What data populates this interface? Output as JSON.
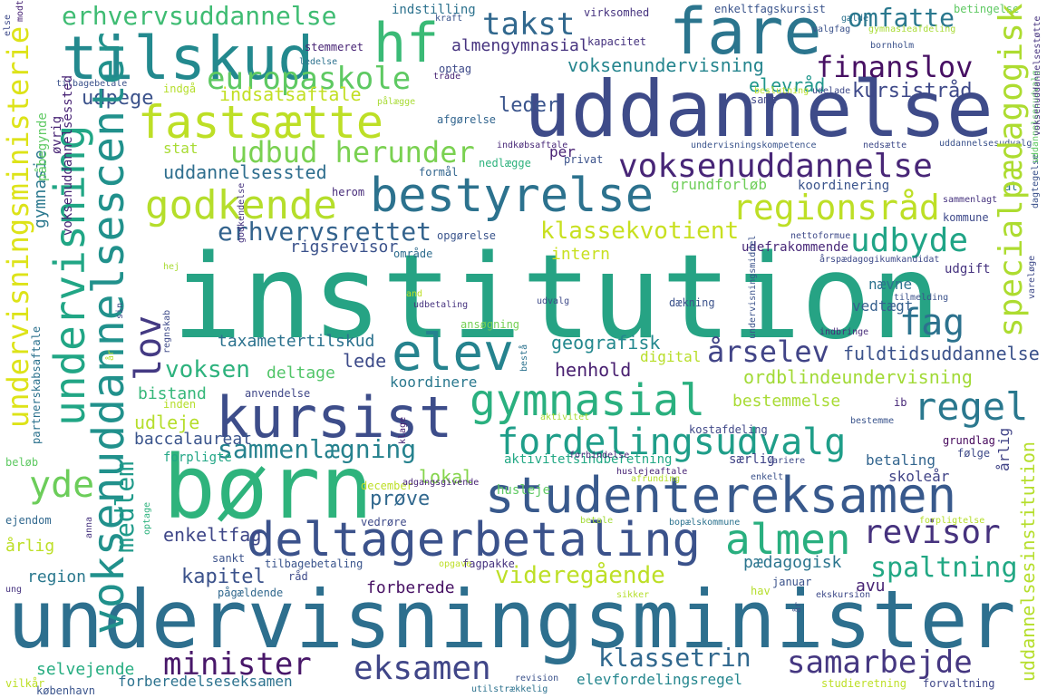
{
  "words": [
    {
      "text": "institution",
      "color": "#26a384"
    },
    {
      "text": "undervisningsminister",
      "color": "#2d6f8e"
    },
    {
      "text": "uddannelse",
      "color": "#3e4b89"
    },
    {
      "text": "børn",
      "color": "#2eb37c"
    },
    {
      "text": "studentereksamen",
      "color": "#38598c"
    },
    {
      "text": "fare",
      "color": "#2b758e"
    },
    {
      "text": "tilskud",
      "color": "#23898e"
    },
    {
      "text": "deltagerbetaling",
      "color": "#3b528b"
    },
    {
      "text": "bestyrelse",
      "color": "#2c728e"
    },
    {
      "text": "kursist",
      "color": "#3d4d8a"
    },
    {
      "text": "fastsætte",
      "color": "#bddf26"
    },
    {
      "text": "gymnasial",
      "color": "#2ab07f"
    },
    {
      "text": "elev",
      "color": "#25838e"
    },
    {
      "text": "voksenuddannelsescenter",
      "color": "#21918c"
    },
    {
      "text": "undervisning",
      "color": "#21a685"
    },
    {
      "text": "undervisningsministerie",
      "color": "#dde318"
    },
    {
      "text": "specialpædagogisk",
      "color": "#addc30"
    },
    {
      "text": "fordelingsudvalg",
      "color": "#1f9e89"
    },
    {
      "text": "almen",
      "color": "#29af7f"
    },
    {
      "text": "voksenuddannelse",
      "color": "#482677"
    },
    {
      "text": "hf",
      "color": "#3aba76"
    },
    {
      "text": "godkende",
      "color": "#b5de2b"
    },
    {
      "text": "regionsråd",
      "color": "#bddf26"
    },
    {
      "text": "regel",
      "color": "#2a788e"
    },
    {
      "text": "eksamen",
      "color": "#404688"
    },
    {
      "text": "europaskole",
      "color": "#5ec962"
    },
    {
      "text": "takst",
      "color": "#31688e"
    },
    {
      "text": "finanslov",
      "color": "#471063"
    },
    {
      "text": "revisor",
      "color": "#46327e"
    },
    {
      "text": "erhvervsuddannelse",
      "color": "#3fbc73"
    },
    {
      "text": "udbud herunder",
      "color": "#7ad151"
    },
    {
      "text": "udbyde",
      "color": "#20a486"
    },
    {
      "text": "minister",
      "color": "#481769"
    },
    {
      "text": "samarbejde",
      "color": "#453781"
    },
    {
      "text": "erhvervsrettet",
      "color": "#33638d"
    },
    {
      "text": "sammenlægning",
      "color": "#26828e"
    },
    {
      "text": "fag",
      "color": "#2c728e"
    },
    {
      "text": "lov",
      "color": "#443a83"
    },
    {
      "text": "yde",
      "color": "#6ccd5a"
    },
    {
      "text": "omfatte",
      "color": "#2a788e"
    },
    {
      "text": "klassekvotient",
      "color": "#c8e020"
    },
    {
      "text": "spaltning",
      "color": "#22a884"
    },
    {
      "text": "voksen",
      "color": "#2db27d"
    },
    {
      "text": "årselev",
      "color": "#414487"
    },
    {
      "text": "klassetrin",
      "color": "#31688e"
    },
    {
      "text": "videregående",
      "color": "#bddf26"
    },
    {
      "text": "medlem",
      "color": "#1f9a8a"
    },
    {
      "text": "voksenundervisning",
      "color": "#25858e"
    },
    {
      "text": "fuldtidsuddannelse",
      "color": "#3b528b"
    },
    {
      "text": "ordblindeundervisning",
      "color": "#a2da37"
    },
    {
      "text": "uddannelsessted",
      "color": "#2e6e8e"
    },
    {
      "text": "leder",
      "color": "#3a548c"
    },
    {
      "text": "elevråd",
      "color": "#1f968b"
    },
    {
      "text": "kursistråd",
      "color": "#3e4989"
    },
    {
      "text": "indsatsaftale",
      "color": "#c2df23"
    },
    {
      "text": "udpege",
      "color": "#3b528b"
    },
    {
      "text": "almengymnasial",
      "color": "#46337f"
    },
    {
      "text": "taxametertilskud",
      "color": "#2c728e"
    },
    {
      "text": "geografisk",
      "color": "#23888e"
    },
    {
      "text": "henhold",
      "color": "#481f70"
    },
    {
      "text": "bestemmelse",
      "color": "#a8db34"
    },
    {
      "text": "deltage",
      "color": "#52c569"
    },
    {
      "text": "lede",
      "color": "#3e4c8a"
    },
    {
      "text": "bistand",
      "color": "#35b779"
    },
    {
      "text": "udleje",
      "color": "#b5de2b"
    },
    {
      "text": "baccalaureat",
      "color": "#3a548c"
    },
    {
      "text": "forpligte",
      "color": "#21a685"
    },
    {
      "text": "prøve",
      "color": "#31688e"
    },
    {
      "text": "lokal",
      "color": "#84d44b"
    },
    {
      "text": "enkeltfag",
      "color": "#3f4788"
    },
    {
      "text": "kapitel",
      "color": "#3b528b"
    },
    {
      "text": "forberede",
      "color": "#471164"
    },
    {
      "text": "pædagogisk",
      "color": "#2b758e"
    },
    {
      "text": "betaling",
      "color": "#32658e"
    },
    {
      "text": "skoleår",
      "color": "#414487"
    },
    {
      "text": "avu",
      "color": "#482475"
    },
    {
      "text": "region",
      "color": "#2a788e"
    },
    {
      "text": "årlig",
      "color": "#bddf26"
    },
    {
      "text": "selvejende",
      "color": "#26ad81"
    },
    {
      "text": "forberedelseseksamen",
      "color": "#2c728e"
    },
    {
      "text": "elevfordelingsregel",
      "color": "#24868e"
    },
    {
      "text": "uddannelsesinstitution",
      "color": "#b5de2b"
    },
    {
      "text": "gymnasie",
      "color": "#2a788e"
    },
    {
      "text": "rigsrevisor",
      "color": "#3b528b"
    },
    {
      "text": "intern",
      "color": "#c8e020"
    },
    {
      "text": "udefrakommende",
      "color": "#482878"
    },
    {
      "text": "nævne",
      "color": "#2c728e"
    },
    {
      "text": "vedtægt",
      "color": "#355f8d"
    },
    {
      "text": "digital",
      "color": "#b8de29"
    },
    {
      "text": "koordinere",
      "color": "#2a788e"
    },
    {
      "text": "grundforløb",
      "color": "#6ece58"
    },
    {
      "text": "koordinering",
      "color": "#3a548c"
    },
    {
      "text": "udgift",
      "color": "#46337f"
    },
    {
      "text": "kommune",
      "color": "#3e4989"
    },
    {
      "text": "påbegynde",
      "color": "#5ec962"
    },
    {
      "text": "øvrig",
      "color": "#482475"
    },
    {
      "text": "stat",
      "color": "#a8db34"
    },
    {
      "text": "per",
      "color": "#482173"
    },
    {
      "text": "privat",
      "color": "#3b528b"
    },
    {
      "text": "nedlægge",
      "color": "#2db27d"
    },
    {
      "text": "formål",
      "color": "#32658e"
    },
    {
      "text": "herom",
      "color": "#472c7a"
    },
    {
      "text": "opgørelse",
      "color": "#3a548c"
    },
    {
      "text": "område",
      "color": "#2f6c8e"
    },
    {
      "text": "ansøgning",
      "color": "#75d054"
    },
    {
      "text": "dækning",
      "color": "#3b528b"
    },
    {
      "text": "indbringe",
      "color": "#472c7a"
    },
    {
      "text": "anvendelse",
      "color": "#3f4788"
    },
    {
      "text": "inden",
      "color": "#b5de2b"
    },
    {
      "text": "kostafdeling",
      "color": "#3f4788"
    },
    {
      "text": "ib",
      "color": "#482878"
    },
    {
      "text": "bestemme",
      "color": "#3a548c"
    },
    {
      "text": "grundlag",
      "color": "#46085c"
    },
    {
      "text": "følge",
      "color": "#3e4a89"
    },
    {
      "text": "særlig",
      "color": "#414487"
    },
    {
      "text": "aktivitetsindberetning",
      "color": "#22a884"
    },
    {
      "text": "december",
      "color": "#bddf26"
    },
    {
      "text": "husleje",
      "color": "#5ec962"
    },
    {
      "text": "huslejeaftale",
      "color": "#482475"
    },
    {
      "text": "afrunding",
      "color": "#b5de2b"
    },
    {
      "text": "enkelt",
      "color": "#3b528b"
    },
    {
      "text": "ejendom",
      "color": "#31688e"
    },
    {
      "text": "vedrøre",
      "color": "#3e4a89"
    },
    {
      "text": "sankt",
      "color": "#3b528b"
    },
    {
      "text": "tilbagebetaling",
      "color": "#3a548c"
    },
    {
      "text": "fagpakke",
      "color": "#46337f"
    },
    {
      "text": "januar",
      "color": "#3b528b"
    },
    {
      "text": "hav",
      "color": "#b5de2b"
    },
    {
      "text": "ekskursion",
      "color": "#3e4a89"
    },
    {
      "text": "pågældende",
      "color": "#31688e"
    },
    {
      "text": "københavn",
      "color": "#3a548c"
    },
    {
      "text": "vilkår",
      "color": "#bddf26"
    },
    {
      "text": "forvaltning",
      "color": "#3f4788"
    },
    {
      "text": "studieretning",
      "color": "#bddf26"
    },
    {
      "text": "indstilling",
      "color": "#2c728e"
    },
    {
      "text": "virksomhed",
      "color": "#46337f"
    },
    {
      "text": "enkeltfagskursist",
      "color": "#3a548c"
    },
    {
      "text": "kapacitet",
      "color": "#46337f"
    },
    {
      "text": "optag",
      "color": "#3e4a89"
    },
    {
      "text": "stemmeret",
      "color": "#482475"
    },
    {
      "text": "indgå",
      "color": "#b5de2b"
    },
    {
      "text": "afgørelse",
      "color": "#32658e"
    },
    {
      "text": "samt",
      "color": "#3f4788"
    },
    {
      "text": "valgfag",
      "color": "#3b528b"
    },
    {
      "text": "gymnasieafdeling",
      "color": "#a8db34"
    },
    {
      "text": "al",
      "color": "#2c728e"
    },
    {
      "text": "beløb",
      "color": "#5ec962"
    },
    {
      "text": "råd",
      "color": "#3e4a89"
    },
    {
      "text": "optage",
      "color": "#2db27d"
    },
    {
      "text": "forpligtelse",
      "color": "#b5de2b"
    },
    {
      "text": "betale",
      "color": "#a2da37"
    },
    {
      "text": "bopælskommune",
      "color": "#2c728e"
    },
    {
      "text": "forbindelse",
      "color": "#482878"
    },
    {
      "text": "variere",
      "color": "#3e4a89"
    },
    {
      "text": "forpligt",
      "color": "#482475"
    },
    {
      "text": "klage",
      "color": "#3b528b"
    },
    {
      "text": "undervisningsmiddel",
      "color": "#3a548c"
    },
    {
      "text": "undervisningskompetence",
      "color": "#2c728e"
    },
    {
      "text": "partnerskabsaftale",
      "color": "#3e4a89"
    },
    {
      "text": "regnskab",
      "color": "#46337f"
    },
    {
      "text": "godkendelse",
      "color": "#3b528b"
    },
    {
      "text": "uddannelsesudvalg",
      "color": "#482475"
    },
    {
      "text": "voksenuddannelsessted",
      "color": "#46337f"
    },
    {
      "text": "voksenuddannelsestøtte",
      "color": "#3e4a89"
    },
    {
      "text": "årspædagogikumkandidat",
      "color": "#482878"
    },
    {
      "text": "indkøbsaftale",
      "color": "#3b528b"
    },
    {
      "text": "bornholm",
      "color": "#3e4989"
    },
    {
      "text": "udelade",
      "color": "#3e4a89"
    },
    {
      "text": "nedsætte",
      "color": "#46337f"
    },
    {
      "text": "sammenlagt",
      "color": "#b5de2b"
    },
    {
      "text": "beslutning",
      "color": "#a8db34"
    },
    {
      "text": "pålægge",
      "color": "#482475"
    },
    {
      "text": "trade",
      "color": "#3a548c"
    },
    {
      "text": "kraft",
      "color": "#2c728e"
    },
    {
      "text": "gælde",
      "color": "#5ec962"
    },
    {
      "text": "betingelse",
      "color": "#3b528b"
    },
    {
      "text": "tilbagebetale",
      "color": "#2c728e"
    },
    {
      "text": "ledelse",
      "color": "#3e4a89"
    },
    {
      "text": "else",
      "color": "#482475"
    },
    {
      "text": "modtage",
      "color": "#3e4a89"
    },
    {
      "text": "nettoformue",
      "color": "#3b528b"
    },
    {
      "text": "tilmelding",
      "color": "#46337f"
    },
    {
      "text": "udbetaling",
      "color": "#bddf26"
    },
    {
      "text": "and",
      "color": "#3e4a89"
    },
    {
      "text": "udvalg",
      "color": "#a8db34"
    },
    {
      "text": "aktivitet",
      "color": "#b5de2b"
    },
    {
      "text": "sikker",
      "color": "#bddf26"
    },
    {
      "text": "opgave",
      "color": "#3b528b"
    },
    {
      "text": "revision",
      "color": "#2c728e"
    },
    {
      "text": "utilstrækkelig",
      "color": "#482475"
    },
    {
      "text": "adgangsgivende",
      "color": "#46337f"
    },
    {
      "text": "ung",
      "color": "#3e4a89"
    },
    {
      "text": "sin",
      "color": "#2c728e"
    },
    {
      "text": "bestå",
      "color": "#b5de2b"
    },
    {
      "text": "hej",
      "color": "#a8db34"
    },
    {
      "text": "år",
      "color": "#3b528b"
    },
    {
      "text": "vareløge",
      "color": "#3e4a89"
    },
    {
      "text": "dagtegelse",
      "color": "#3b528b"
    },
    {
      "text": "anna",
      "color": "#46337f"
    },
    {
      "text": "ledelse",
      "color": "#2c728e"
    },
    {
      "text": "uddannelsesudvalg",
      "color": "#5ec962"
    }
  ]
}
